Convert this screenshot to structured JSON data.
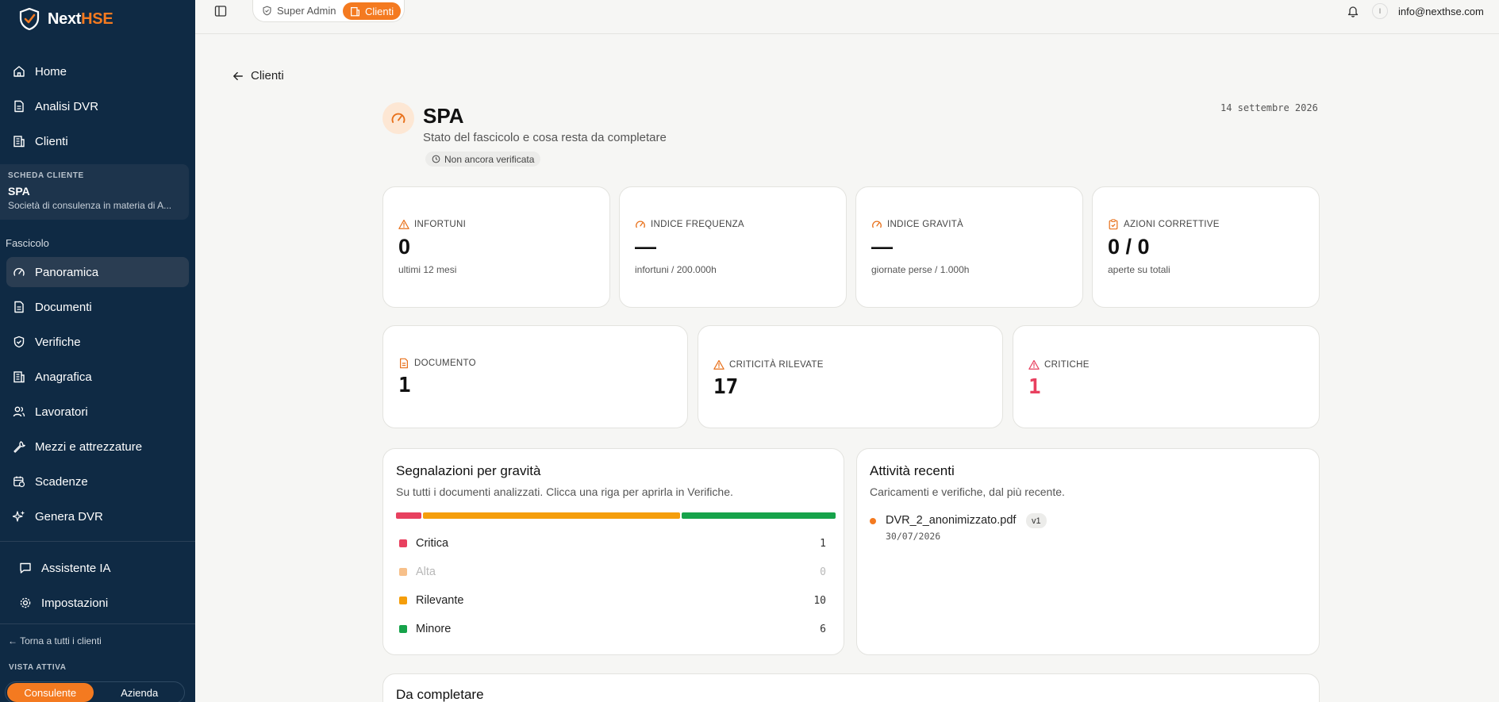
{
  "brand": {
    "name_part1": "Next",
    "name_part2": "HSE"
  },
  "nav_primary": [
    {
      "label": "Home",
      "icon": "home-icon"
    },
    {
      "label": "Analisi DVR",
      "icon": "file-text-icon"
    },
    {
      "label": "Clienti",
      "icon": "building-icon"
    }
  ],
  "client_card": {
    "label": "SCHEDA CLIENTE",
    "name": "SPA",
    "description": "Società di consulenza in materia di A..."
  },
  "section_label": "Fascicolo",
  "nav_fascicolo": [
    {
      "label": "Panoramica",
      "icon": "gauge-icon",
      "active": true
    },
    {
      "label": "Documenti",
      "icon": "file-text-icon"
    },
    {
      "label": "Verifiche",
      "icon": "shield-check-icon"
    },
    {
      "label": "Anagrafica",
      "icon": "building-icon"
    },
    {
      "label": "Lavoratori",
      "icon": "users-icon"
    },
    {
      "label": "Mezzi e attrezzature",
      "icon": "wrench-icon"
    },
    {
      "label": "Scadenze",
      "icon": "calendar-clock-icon"
    },
    {
      "label": "Genera DVR",
      "icon": "sparkles-icon"
    }
  ],
  "nav_bottom": [
    {
      "label": "Assistente IA",
      "icon": "message-square-icon"
    },
    {
      "label": "Impostazioni",
      "icon": "gear-icon"
    }
  ],
  "back_to_clients": "← Torna a tutti i clienti",
  "vista": {
    "label": "VISTA ATTIVA",
    "options": [
      "Consulente",
      "Azienda"
    ],
    "selected": "Consulente"
  },
  "topbar": {
    "crumb_superadmin": "Super Admin",
    "crumb_clienti": "Clienti",
    "avatar_initial": "I",
    "user_email": "info@nexthse.com"
  },
  "back_link": "Clienti",
  "header": {
    "title": "SPA",
    "subtitle": "Stato del fascicolo e cosa resta da completare",
    "status": "Non ancora verificata",
    "date": "14 settembre 2026"
  },
  "kpis_row1": [
    {
      "label": "INFORTUNI",
      "icon": "alert-triangle-icon",
      "value": "0",
      "sub": "ultimi 12 mesi"
    },
    {
      "label": "INDICE FREQUENZA",
      "icon": "gauge-icon",
      "value": "—",
      "sub": "infortuni / 200.000h"
    },
    {
      "label": "INDICE GRAVITÀ",
      "icon": "gauge-icon",
      "value": "—",
      "sub": "giornate perse / 1.000h"
    },
    {
      "label": "AZIONI CORRETTIVE",
      "icon": "clipboard-check-icon",
      "value": "0 / 0",
      "sub": "aperte su totali"
    }
  ],
  "kpis_row2": [
    {
      "label": "DOCUMENTO",
      "icon": "file-text-icon",
      "value": "1"
    },
    {
      "label": "CRITICITÀ RILEVATE",
      "icon": "alert-triangle-icon",
      "value": "17"
    },
    {
      "label": "CRITICHE",
      "icon": "alert-triangle-icon",
      "value": "1"
    }
  ],
  "severity_panel": {
    "title": "Segnalazioni per gravità",
    "description": "Su tutti i documenti analizzati. Clicca una riga per aprirla in Verifiche.",
    "rows": [
      {
        "label": "Critica",
        "count": 1,
        "color": "#e8405f"
      },
      {
        "label": "Alta",
        "count": 0,
        "color": "#f7c08a"
      },
      {
        "label": "Rilevante",
        "count": 10,
        "color": "#f59e0b"
      },
      {
        "label": "Minore",
        "count": 6,
        "color": "#16a34a"
      }
    ]
  },
  "activity_panel": {
    "title": "Attività recenti",
    "description": "Caricamenti e verifiche, dal più recente.",
    "items": [
      {
        "name": "DVR_2_anonimizzato.pdf",
        "version": "v1",
        "date": "30/07/2026"
      }
    ]
  },
  "todo_panel": {
    "title": "Da completare"
  },
  "colors": {
    "accent": "#f47a20",
    "sidebar": "#0f2a44",
    "critical": "#e8405f"
  }
}
